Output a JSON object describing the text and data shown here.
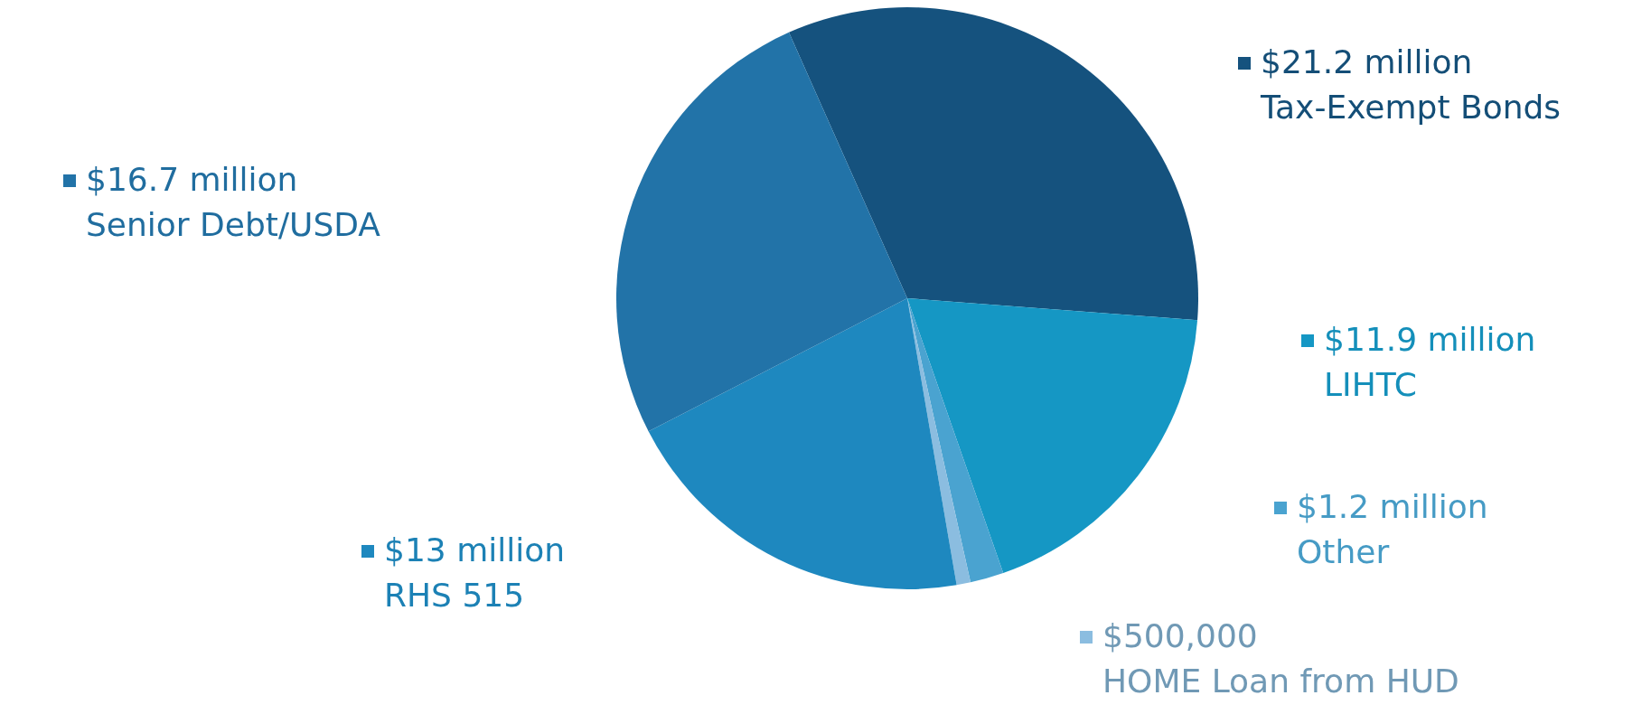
{
  "chart_data": {
    "type": "pie",
    "categories": [
      "Tax-Exempt Bonds",
      "LIHTC",
      "Other",
      "HOME Loan from HUD",
      "RHS 515",
      "Senior Debt/USDA"
    ],
    "values": [
      21200000,
      11900000,
      1200000,
      500000,
      13000000,
      16700000
    ],
    "value_labels": [
      "$21.2 million",
      "$11.9 million",
      "$1.2 million",
      "$500,000",
      "$13 million",
      "$16.7 million"
    ],
    "legend": "bottom left",
    "colors": [
      "#15527e",
      "#1597c4",
      "#4aa3d0",
      "#8bbde0",
      "#1e88bf",
      "#2273a8"
    ]
  }
}
